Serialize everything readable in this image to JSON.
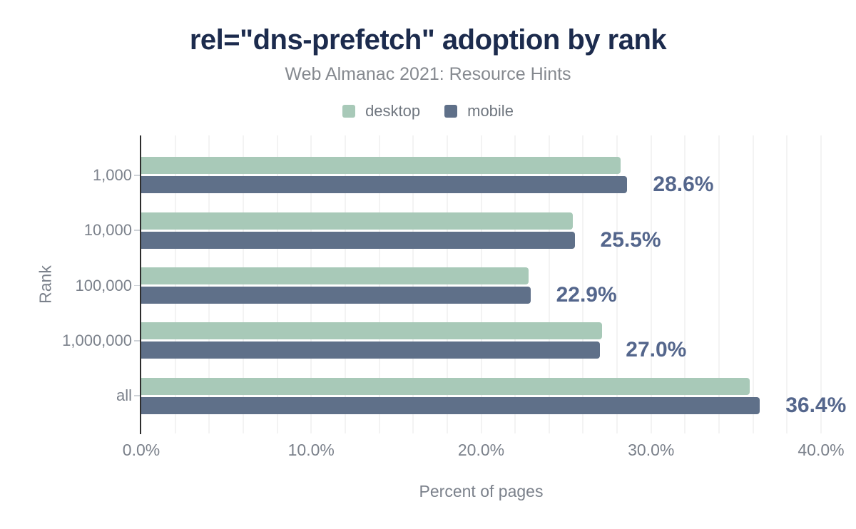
{
  "title": "rel=\"dns-prefetch\" adoption by rank",
  "subtitle": "Web Almanac 2021: Resource Hints",
  "legend": [
    {
      "label": "desktop",
      "color": "#a8c9b8"
    },
    {
      "label": "mobile",
      "color": "#5f7089"
    }
  ],
  "chart_data": {
    "type": "bar",
    "orientation": "horizontal",
    "title": "rel=\"dns-prefetch\" adoption by rank",
    "subtitle": "Web Almanac 2021: Resource Hints",
    "categories": [
      "1,000",
      "10,000",
      "100,000",
      "1,000,000",
      "all"
    ],
    "series": [
      {
        "name": "desktop",
        "color": "#a8c9b8",
        "values": [
          28.2,
          25.4,
          22.8,
          27.1,
          35.8
        ]
      },
      {
        "name": "mobile",
        "color": "#5f7089",
        "values": [
          28.6,
          25.5,
          22.9,
          27.0,
          36.4
        ]
      }
    ],
    "data_labels": [
      "28.6%",
      "25.5%",
      "22.9%",
      "27.0%",
      "36.4%"
    ],
    "data_label_series": "mobile",
    "xlabel": "Percent of pages",
    "ylabel": "Rank",
    "x_ticks": [
      {
        "value": 0,
        "label": "0.0%"
      },
      {
        "value": 10,
        "label": "10.0%"
      },
      {
        "value": 20,
        "label": "20.0%"
      },
      {
        "value": 30,
        "label": "30.0%"
      },
      {
        "value": 40,
        "label": "40.0%"
      }
    ],
    "xlim": [
      0,
      40
    ],
    "grid_step": 2,
    "grid_on": true,
    "legend_position": "top"
  },
  "colors": {
    "background": "#ffffff",
    "title_text": "#1c2b4d",
    "subtitle_text": "#85898f",
    "legend_text": "#6f767f",
    "axis_text": "#7b818b",
    "data_label_text": "#54668c",
    "gridline": "#f3f3f3",
    "axis_line": "#2e2e2e",
    "category_tick": "#cfd3d8"
  }
}
